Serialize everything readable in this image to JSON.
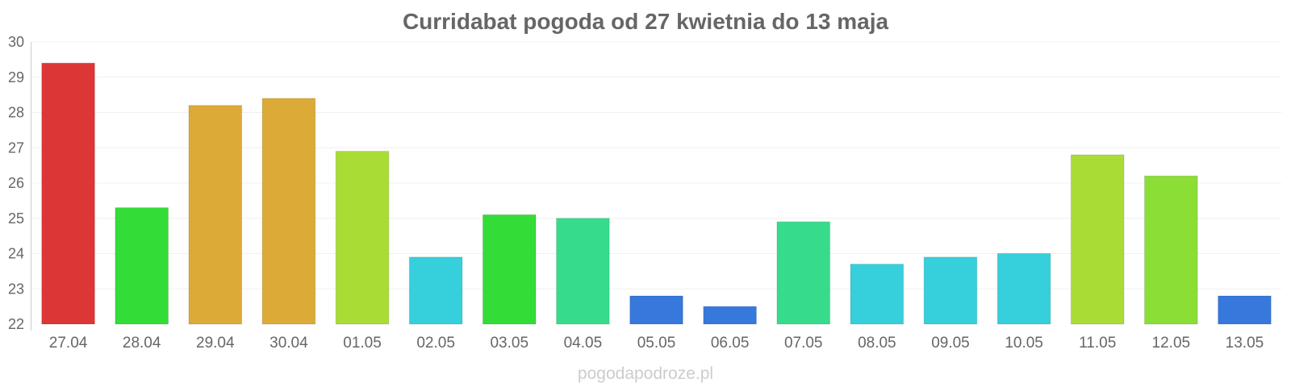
{
  "watermark": "pogodapodroze.pl",
  "chart_data": {
    "type": "bar",
    "title": "Curridabat pogoda od 27 kwietnia do 13 maja",
    "xlabel": "",
    "ylabel": "",
    "ylim": [
      22,
      30
    ],
    "yticks": [
      "22",
      "23",
      "24",
      "25",
      "26",
      "27",
      "28",
      "29",
      "30"
    ],
    "grid": true,
    "legend": "none",
    "categories": [
      "27.04",
      "28.04",
      "29.04",
      "30.04",
      "01.05",
      "02.05",
      "03.05",
      "04.05",
      "05.05",
      "06.05",
      "07.05",
      "08.05",
      "09.05",
      "10.05",
      "11.05",
      "12.05",
      "13.05"
    ],
    "values": [
      29.4,
      25.3,
      28.2,
      28.4,
      26.9,
      23.9,
      25.1,
      25.0,
      22.8,
      22.5,
      24.9,
      23.7,
      23.9,
      24.0,
      26.8,
      26.2,
      22.8
    ],
    "colors": [
      "#dc3636",
      "#33dc36",
      "#dcaa36",
      "#dcaa36",
      "#aadc36",
      "#36cfdc",
      "#33dc36",
      "#36dc8c",
      "#3678dc",
      "#3678dc",
      "#36dc8c",
      "#36cfdc",
      "#36cfdc",
      "#36cfdc",
      "#aadc36",
      "#8ade36",
      "#3678dc"
    ]
  }
}
